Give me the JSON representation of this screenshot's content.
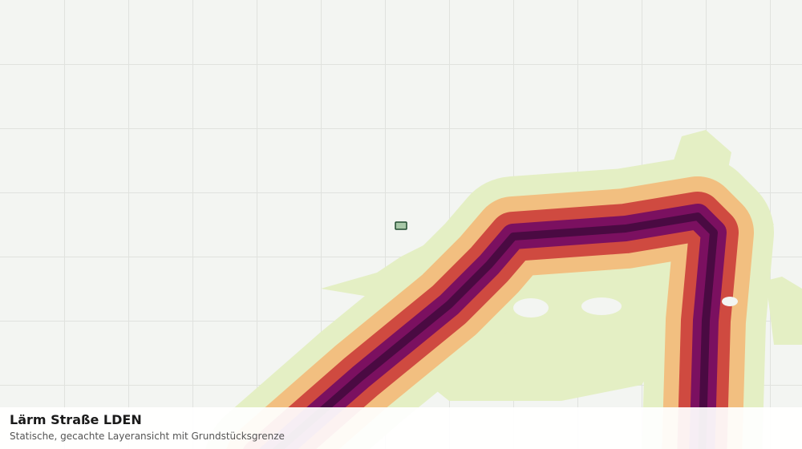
{
  "header": {
    "title": "Lärm Straße LDEN",
    "subtitle": "Statische, gecachte Layeransicht mit Grundstücksgrenze"
  }
}
